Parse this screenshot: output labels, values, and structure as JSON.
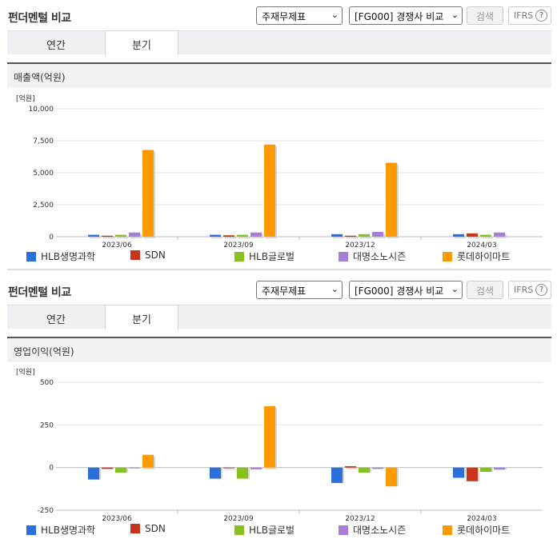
{
  "colors": {
    "HLB생명과학": "#2a6fdb",
    "SDN": "#c8341c",
    "HLB글로벌": "#86c11c",
    "대명소노시즌": "#a77fd8",
    "롯데하이마트": "#ff9a00"
  },
  "sections": [
    {
      "title": "펀더멘털 비교",
      "select1": "주재무제표",
      "select2": "[FG000] 경쟁사 비교",
      "search_label": "검색",
      "ifrs_label": "IFRS",
      "help_label": "?",
      "tabs": [
        "연간",
        "분기"
      ],
      "active_tab": 1,
      "chart_title": "매출액(억원)",
      "unit_label": "[억원]"
    },
    {
      "title": "펀더멘털 비교",
      "select1": "주재무제표",
      "select2": "[FG000] 경쟁사 비교",
      "search_label": "검색",
      "ifrs_label": "IFRS",
      "help_label": "?",
      "tabs": [
        "연간",
        "분기"
      ],
      "active_tab": 1,
      "chart_title": "영업이익(억원)",
      "unit_label": "[억원]"
    }
  ],
  "chart_data": [
    {
      "type": "bar",
      "title": "매출액(억원)",
      "ylabel": "[억원]",
      "categories": [
        "2023/06",
        "2023/09",
        "2023/12",
        "2024/03"
      ],
      "ylim": [
        0,
        10000
      ],
      "yticks": [
        0,
        2500,
        5000,
        7500,
        10000
      ],
      "ytick_labels": [
        "0",
        "2,500",
        "5,000",
        "7,500",
        "10,000"
      ],
      "grid": true,
      "legend": "bottom",
      "series": [
        {
          "name": "HLB생명과학",
          "values": [
            150,
            150,
            200,
            200
          ]
        },
        {
          "name": "SDN",
          "values": [
            80,
            110,
            80,
            260
          ]
        },
        {
          "name": "HLB글로벌",
          "values": [
            150,
            150,
            200,
            150
          ]
        },
        {
          "name": "대명소노시즌",
          "values": [
            330,
            330,
            380,
            330
          ]
        },
        {
          "name": "롯데하이마트",
          "values": [
            6780,
            7200,
            5780,
            null
          ]
        }
      ]
    },
    {
      "type": "bar",
      "title": "영업이익(억원)",
      "ylabel": "[억원]",
      "categories": [
        "2023/06",
        "2023/09",
        "2023/12",
        "2024/03"
      ],
      "ylim": [
        -250,
        500
      ],
      "yticks": [
        -250,
        0,
        250,
        500
      ],
      "ytick_labels": [
        "-250",
        "0",
        "250",
        "500"
      ],
      "grid": true,
      "legend": "bottom",
      "series": [
        {
          "name": "HLB생명과학",
          "values": [
            -70,
            -65,
            -90,
            -60
          ]
        },
        {
          "name": "SDN",
          "values": [
            -8,
            0,
            8,
            -80
          ]
        },
        {
          "name": "HLB글로벌",
          "values": [
            -30,
            -65,
            -30,
            -25
          ]
        },
        {
          "name": "대명소노시즌",
          "values": [
            -3,
            -10,
            -8,
            -12
          ]
        },
        {
          "name": "롯데하이마트",
          "values": [
            75,
            360,
            -110,
            null
          ]
        }
      ]
    }
  ]
}
